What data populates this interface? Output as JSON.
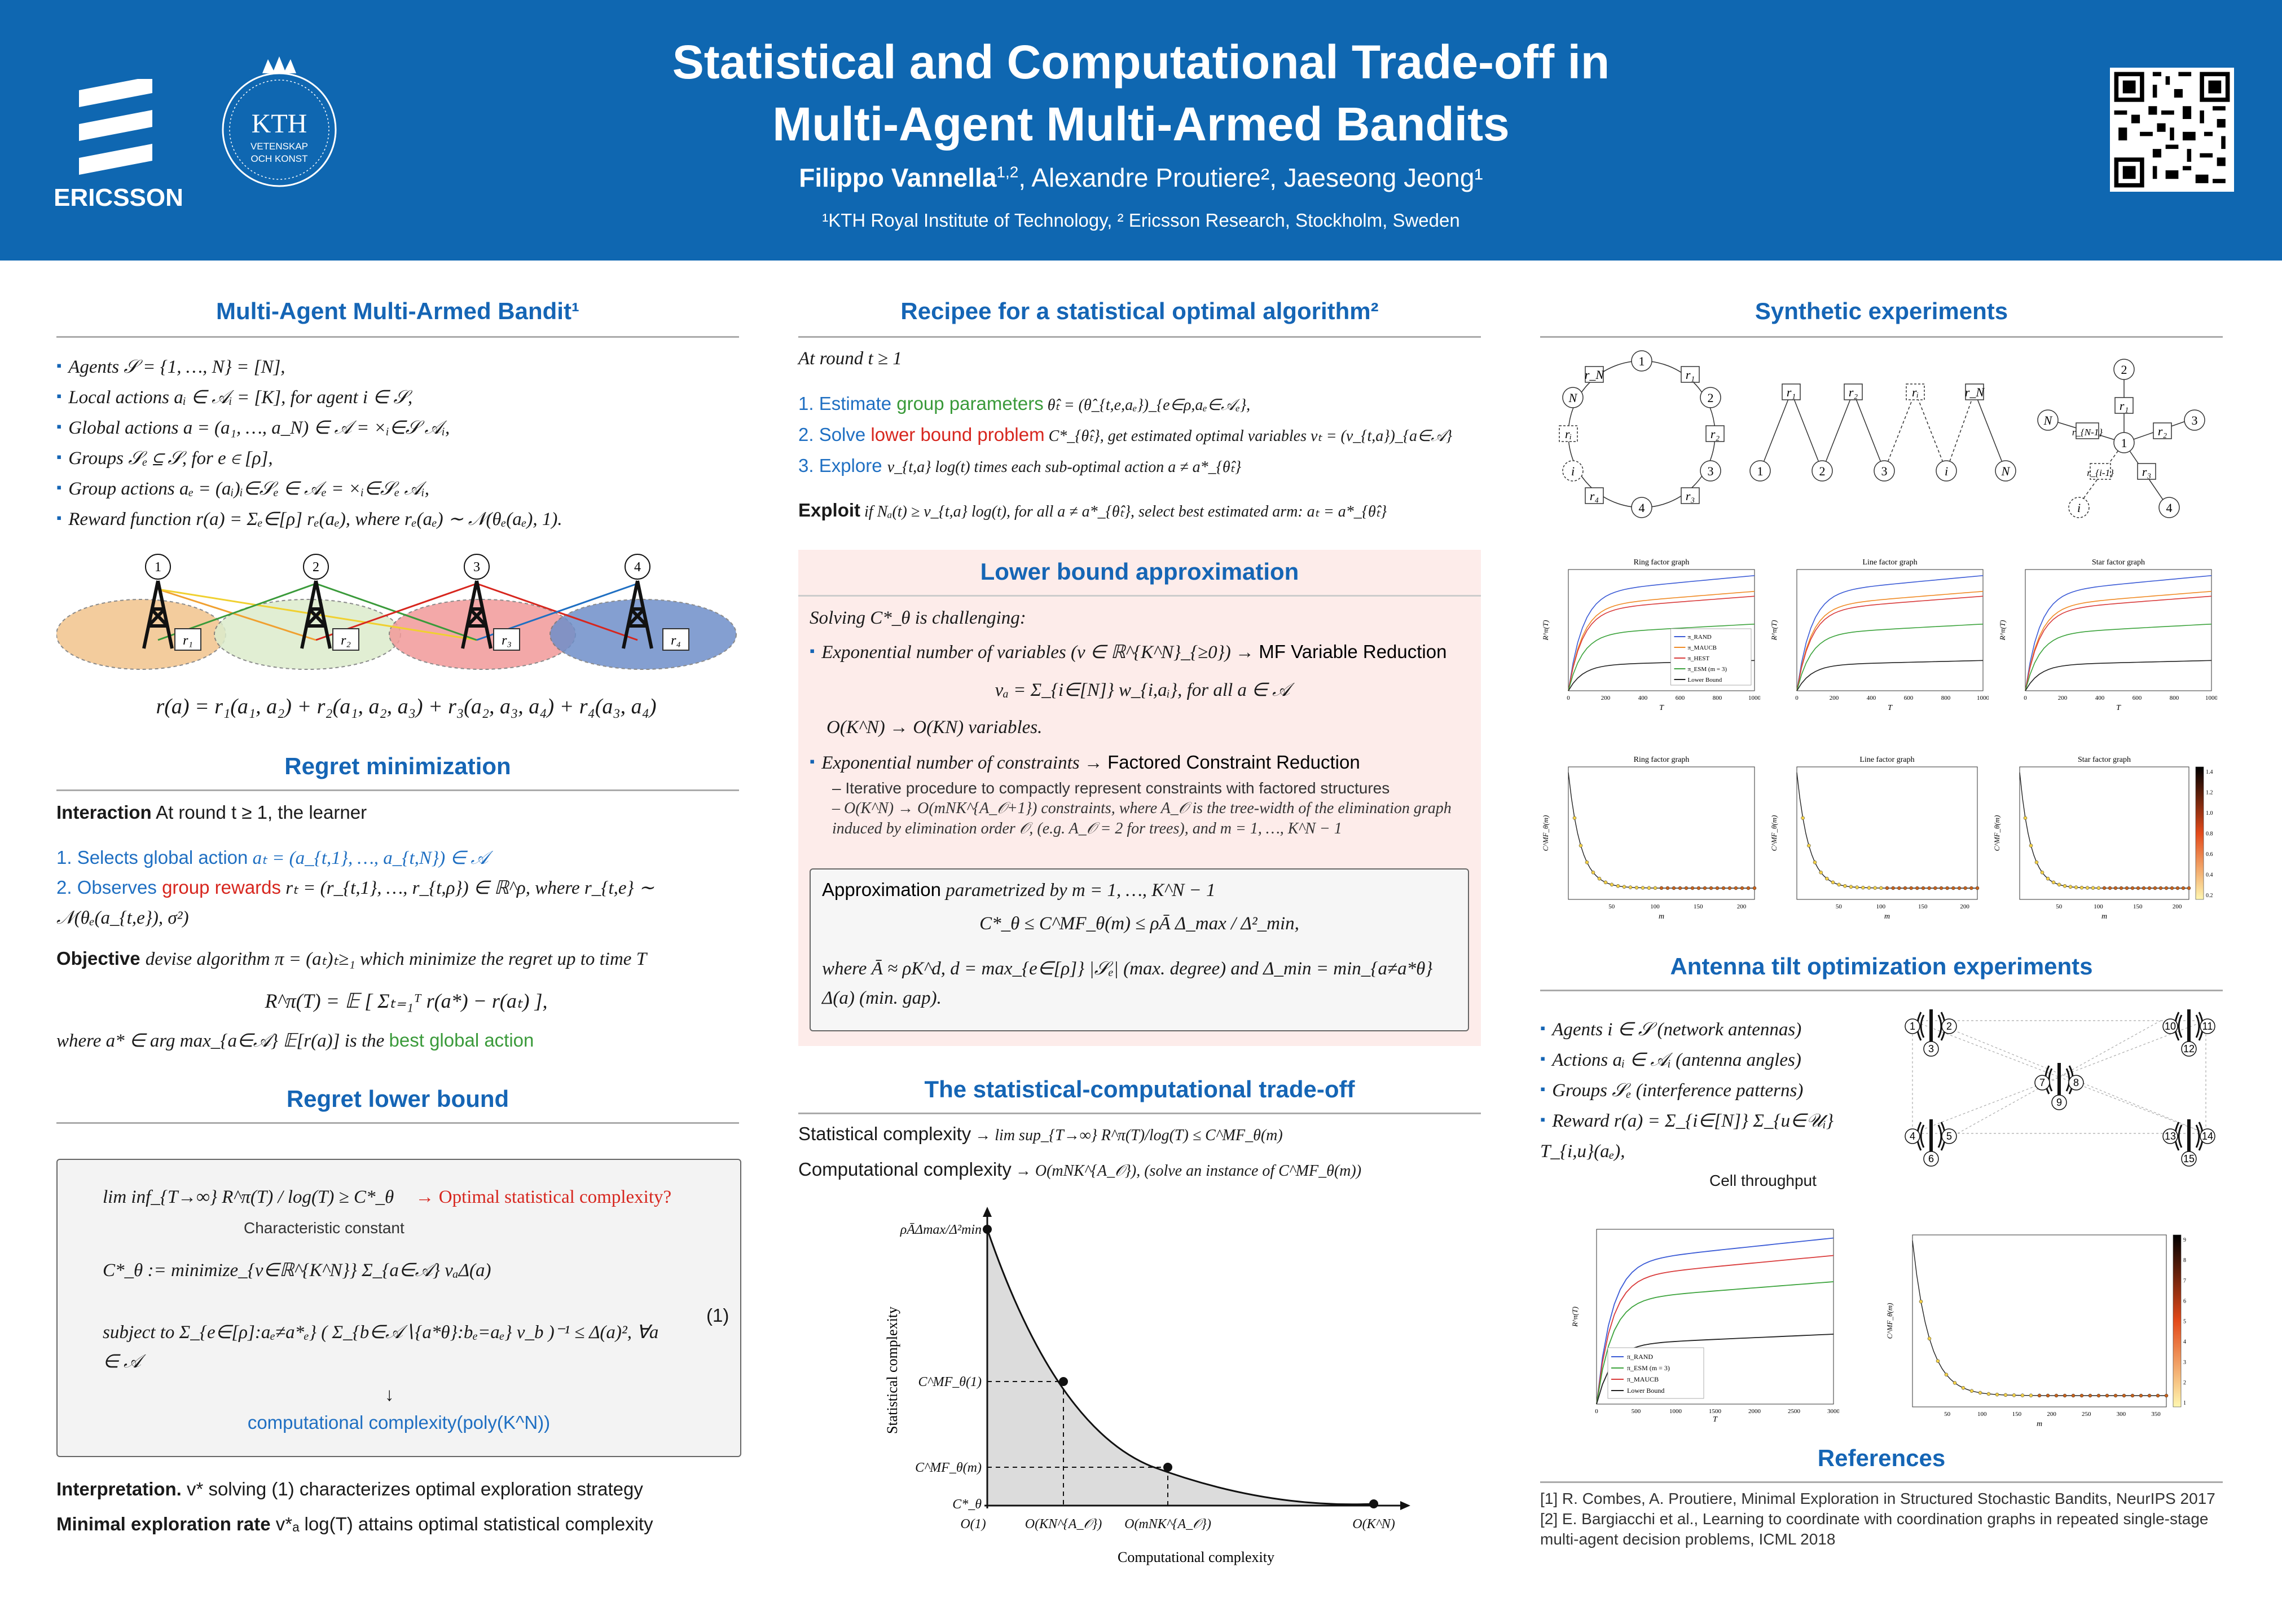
{
  "header": {
    "title_line1": "Statistical and Computational Trade-off in",
    "title_line2": "Multi-Agent Multi-Armed Bandits",
    "author1": "Filippo Vannella",
    "author1_sup": "1,2",
    "author_rest": ", Alexandre Proutiere², Jaeseong Jeong¹",
    "affiliation": "¹KTH Royal Institute of Technology, ² Ericsson Research, Stockholm, Sweden",
    "ericsson_label": "ERICSSON",
    "kth_label": "KTH",
    "kth_sub1": "VETENSKAP",
    "kth_sub2": "OCH KONST"
  },
  "mamab": {
    "title": "Multi-Agent Multi-Armed Bandit¹",
    "items": [
      "Agents 𝒮 = {1, …, N} = [N],",
      "Local actions aᵢ ∈ 𝒜ᵢ = [K], for agent i ∈ 𝒮,",
      "Global actions a = (a₁, …, a_N) ∈ 𝒜 = ×ᵢ∈𝒮 𝒜ᵢ,",
      "Groups 𝒮ₑ ⊆ 𝒮, for e ∈ [ρ],",
      "Group actions aₑ = (aᵢ)ᵢ∈𝒮ₑ ∈ 𝒜ₑ = ×ᵢ∈𝒮ₑ 𝒜ᵢ,",
      "Reward function r(a) = Σₑ∈[ρ] rₑ(aₑ),  where rₑ(aₑ) ∼ 𝒩(θₑ(aₑ), 1)."
    ],
    "nodes": [
      "1",
      "2",
      "3",
      "4"
    ],
    "rewards": [
      "r₁",
      "r₂",
      "r₃",
      "r₄"
    ],
    "equation": "r(a) = r₁(a₁, a₂) + r₂(a₁, a₂, a₃) + r₃(a₂, a₃, a₄) + r₄(a₃, a₄)"
  },
  "regret": {
    "title": "Regret minimization",
    "interaction_label": "Interaction",
    "interaction": "At round t ≥ 1, the learner",
    "step1_pre": "1.  Selects ",
    "step1_hl": "global action",
    "step1_post": " aₜ = (a_{t,1}, …, a_{t,N}) ∈ 𝒜",
    "step2_pre": "2.  Observes ",
    "step2_hl": "group rewards",
    "step2_post": " rₜ = (r_{t,1}, …, r_{t,ρ}) ∈ ℝ^ρ, where r_{t,e} ∼ 𝒩(θₑ(a_{t,e}), σ²)",
    "objective_label": "Objective",
    "objective": "devise algorithm π = (aₜ)ₜ≥₁ which minimize the regret up to time T",
    "regret_eq": "R^π(T) = 𝔼 [ Σₜ₌₁ᵀ r(a*) − r(aₜ) ],",
    "where_pre": "where a* ∈ arg max_{a∈𝒜} 𝔼[r(a)] is the ",
    "where_hl": "best global action"
  },
  "lower": {
    "title": "Regret lower bound",
    "lb_eq": "lim inf_{T→∞} R^π(T) / log(T) ≥ C*_θ",
    "lb_label": "Characteristic constant",
    "lb_question": "→ Optimal statistical complexity?",
    "opt_line1": "C*_θ := minimize_{v∈ℝ^{K^N}} Σ_{a∈𝒜} vₐΔ(a)",
    "opt_line2": "subject to  Σ_{e∈[ρ]:aₑ≠a*ₑ} ( Σ_{b∈𝒜∖{a*θ}:bₑ=aₑ} v_b )⁻¹ ≤ Δ(a)²,   ∀a ∈ 𝒜",
    "eq_number": "(1)",
    "arrow": "↓",
    "comp": "computational complexity(poly(K^N))",
    "interp_label": "Interpretation.",
    "interp": "v* solving (1) characterizes optimal exploration strategy",
    "minexp_label": "Minimal exploration rate",
    "minexp": "v*ₐ log(T) attains optimal statistical complexity"
  },
  "recipe": {
    "title": "Recipee for a statistical optimal algorithm²",
    "at_round": "At round t ≥ 1",
    "step1_pre": "1.  Estimate ",
    "step1_hl": "group parameters",
    "step1_post": " θ̂ₜ = (θ̂_{t,e,aₑ})_{e∈ρ,aₑ∈𝒜ₑ},",
    "step2_pre": "2.  Solve ",
    "step2_hl": "lower bound problem",
    "step2_post": " C*_{θ̂ₜ}, get estimated optimal variables vₜ = (v_{t,a})_{a∈𝒜}",
    "step3_pre": "3.  Explore ",
    "step3_post": "v_{t,a} log(t) times each sub-optimal action a ≠ a*_{θ̂ₜ}",
    "exploit_label": "Exploit",
    "exploit": " if Nₐ(t) ≥ v_{t,a} log(t), for all a ≠ a*_{θ̂ₜ}, select best estimated arm: aₜ = a*_{θ̂ₜ}"
  },
  "approx": {
    "title": "Lower bound approximation",
    "solving": "Solving C*_θ is challenging:",
    "b1_pre": "Exponential number of variables (v ∈ ℝ^{K^N}_{≥0}) → ",
    "b1_hl": "MF Variable Reduction",
    "b1_eq": "vₐ = Σ_{i∈[N]} w_{i,aᵢ},  for all a ∈ 𝒜",
    "b1_post": "O(K^N) → O(KN) variables.",
    "b2_pre": "Exponential number of constraints → ",
    "b2_hl": "Factored Constraint Reduction",
    "sub1": "Iterative procedure to compactly represent constraints with factored structures",
    "sub2": "O(K^N) → O(mNK^{A_𝒪+1}) constraints, where A_𝒪 is the tree-width of the elimination graph induced by elimination order 𝒪, (e.g. A_𝒪 = 2 for trees), and m = 1, …, K^N − 1",
    "box_label": "Approximation",
    "box_line1": " parametrized by m = 1, …, K^N − 1",
    "box_eq": "C*_θ ≤ C^MF_θ(m) ≤ ρĀ Δ_max / Δ²_min,",
    "box_where": "where Ā ≈ ρK^d, d = max_{e∈[ρ]} |𝒮ₑ| (max. degree) and Δ_min = min_{a≠a*θ} Δ(a) (min. gap)."
  },
  "tradeoff": {
    "title": "The statistical-computational trade-off",
    "stat_label": "Statistical complexity",
    "stat": " → lim sup_{T→∞} R^π(T)/log(T) ≤ C^MF_θ(m)",
    "comp_label": "Computational complexity",
    "comp": " → O(mNK^{A_𝒪}), (solve an instance of C^MF_θ(m))",
    "y_axis": "Statistical complexity",
    "x_axis": "Computational complexity",
    "y_ticks": [
      "ρĀΔmax/Δ²min",
      "C^MF_θ(1)",
      "C^MF_θ(m)",
      "C*_θ"
    ],
    "x_ticks": [
      "O(1)",
      "O(KN^{A_𝒪})",
      "O(mNK^{A_𝒪})",
      "O(K^N)"
    ]
  },
  "synthetic": {
    "title": "Synthetic experiments",
    "ring_nodes": [
      "1",
      "2",
      "3",
      "4",
      "i",
      "N"
    ],
    "ring_factors": [
      "r₁",
      "r₂",
      "r₃",
      "r₄",
      "rᵢ",
      "r_N"
    ],
    "line_nodes": [
      "1",
      "2",
      "3",
      "i",
      "N"
    ],
    "line_factors": [
      "r₁",
      "r₂",
      "rᵢ",
      "r_N"
    ],
    "star_nodes": [
      "1",
      "2",
      "3",
      "4",
      "i",
      "N"
    ],
    "star_factors": [
      "r₁",
      "r₂",
      "r₃",
      "r_{i-1}",
      "r_{N-1}"
    ],
    "plot_titles": [
      "Ring factor graph",
      "Line factor graph",
      "Star factor graph"
    ],
    "legend": [
      "π_RAND",
      "π_MAUCB",
      "π_HEST",
      "π_ESM (m = 3)",
      "Lower Bound"
    ],
    "x_label_top": "T",
    "x_label_bottom": "m",
    "y_label_top": "R^π(T)",
    "y_label_bottom": "C^MF_θ(m)",
    "x_ticks_top": [
      "0",
      "200",
      "400",
      "600",
      "800",
      "1000"
    ],
    "x_ticks_bottom": [
      "50",
      "100",
      "150",
      "200"
    ],
    "colorbar_ticks": [
      "1.4",
      "1.2",
      "1.0",
      "0.8",
      "0.6",
      "0.4",
      "0.2"
    ],
    "colors": {
      "rand": "#3b5bd6",
      "maucb": "#f08a24",
      "hest": "#d93b3b",
      "esm": "#3ca33c",
      "lb": "#222222"
    }
  },
  "antenna": {
    "title": "Antenna tilt optimization experiments",
    "items": [
      "Agents i ∈ 𝒮 (network antennas)",
      "Actions aᵢ ∈ 𝒜ᵢ (antenna angles)",
      "Groups 𝒮ₑ (interference patterns)",
      "Reward r(a) = Σ_{i∈[N]} Σ_{u∈𝒰ᵢ} T_{i,u}(aₑ),"
    ],
    "cell_label": "Cell throughput",
    "nodes": [
      "1",
      "2",
      "3",
      "4",
      "5",
      "6",
      "7",
      "8",
      "9",
      "10",
      "11",
      "12",
      "13",
      "14",
      "15"
    ],
    "legend": [
      "π_RAND",
      "π_ESM (m = 3)",
      "π_MAUCB",
      "Lower Bound"
    ],
    "x_ticks_left": [
      "0",
      "500",
      "1000",
      "1500",
      "2000",
      "2500",
      "3000"
    ],
    "x_ticks_right": [
      "50",
      "100",
      "150",
      "200",
      "250",
      "300",
      "350"
    ],
    "colorbar_ticks": [
      "9",
      "8",
      "7",
      "6",
      "5",
      "4",
      "3",
      "2",
      "1"
    ]
  },
  "references": {
    "title": "References",
    "ref1": "[1] R. Combes, A. Proutiere, Minimal Exploration in Structured Stochastic Bandits, NeurIPS 2017",
    "ref2": "[2] E. Bargiacchi et al., Learning to coordinate with coordination graphs in repeated single-stage multi-agent decision problems, ICML 2018"
  }
}
